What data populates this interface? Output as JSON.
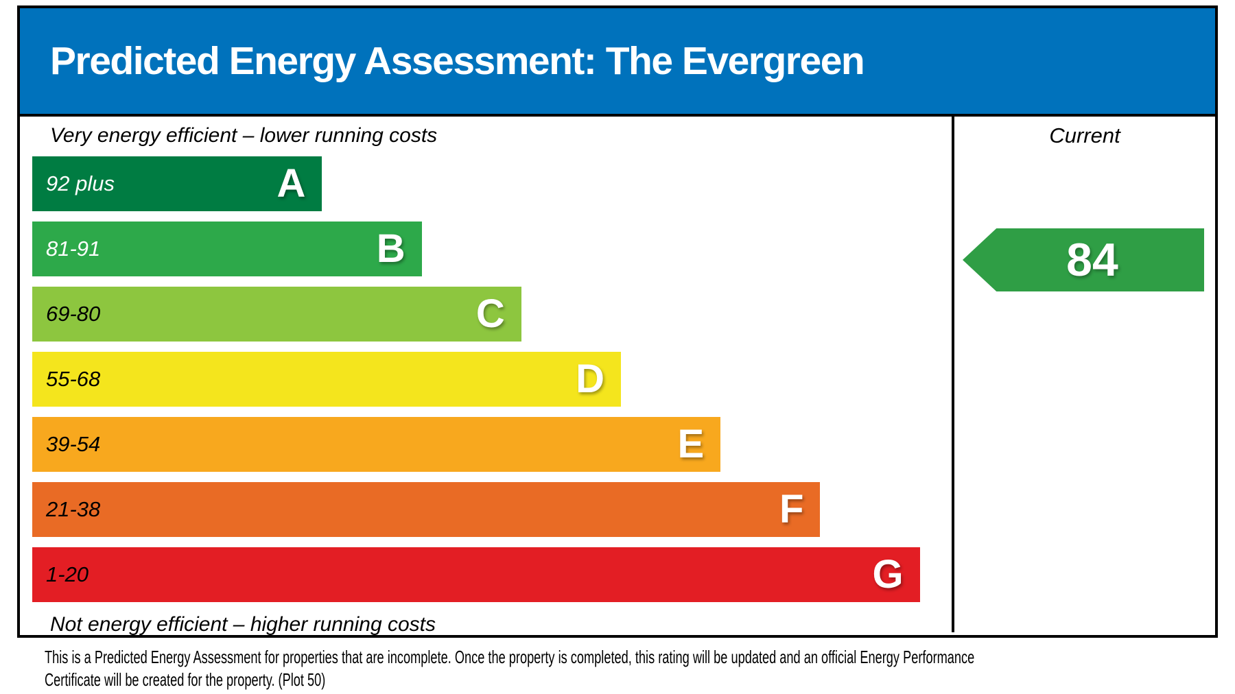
{
  "header": {
    "title": "Predicted Energy Assessment: The Evergreen",
    "bg_color": "#0072bc"
  },
  "chart": {
    "top_label": "Very energy efficient – lower running costs",
    "bottom_label": "Not energy efficient – higher running costs",
    "bands": [
      {
        "letter": "A",
        "range": "92 plus",
        "color": "#007c42",
        "width_pct": 32,
        "label_color": "#ffffff"
      },
      {
        "letter": "B",
        "range": "81-91",
        "color": "#2da94a",
        "width_pct": 43,
        "label_color": "#ffffff"
      },
      {
        "letter": "C",
        "range": "69-80",
        "color": "#8dc63f",
        "width_pct": 54,
        "label_color": "#000000"
      },
      {
        "letter": "D",
        "range": "55-68",
        "color": "#f4e51d",
        "width_pct": 65,
        "label_color": "#000000"
      },
      {
        "letter": "E",
        "range": "39-54",
        "color": "#f8a81e",
        "width_pct": 76,
        "label_color": "#000000"
      },
      {
        "letter": "F",
        "range": "21-38",
        "color": "#e96b25",
        "width_pct": 87,
        "label_color": "#000000"
      },
      {
        "letter": "G",
        "range": "1-20",
        "color": "#e31e24",
        "width_pct": 98,
        "label_color": "#000000"
      }
    ],
    "current": {
      "header": "Current",
      "value": "84",
      "band": "B",
      "arrow_color": "#2f9e45"
    }
  },
  "footer": {
    "line1": "This is a Predicted Energy Assessment for properties that are incomplete. Once the property is completed, this rating will be updated and an official Energy Performance",
    "line2": "Certificate will be created for the property. (Plot 50)"
  },
  "chart_data": {
    "type": "bar",
    "title": "Predicted Energy Assessment: The Evergreen",
    "categories": [
      "A",
      "B",
      "C",
      "D",
      "E",
      "F",
      "G"
    ],
    "band_ranges": [
      "92 plus",
      "81-91",
      "69-80",
      "55-68",
      "39-54",
      "21-38",
      "1-20"
    ],
    "series": [
      {
        "name": "band_bar_width_pct",
        "values": [
          32,
          43,
          54,
          65,
          76,
          87,
          98
        ]
      }
    ],
    "band_colors": [
      "#007c42",
      "#2da94a",
      "#8dc63f",
      "#f4e51d",
      "#f8a81e",
      "#e96b25",
      "#e31e24"
    ],
    "current_rating": 84,
    "current_band": "B",
    "annotations": [
      "Very energy efficient – lower running costs",
      "Not energy efficient – higher running costs",
      "Current"
    ],
    "legend_position": "none",
    "grid": false
  }
}
